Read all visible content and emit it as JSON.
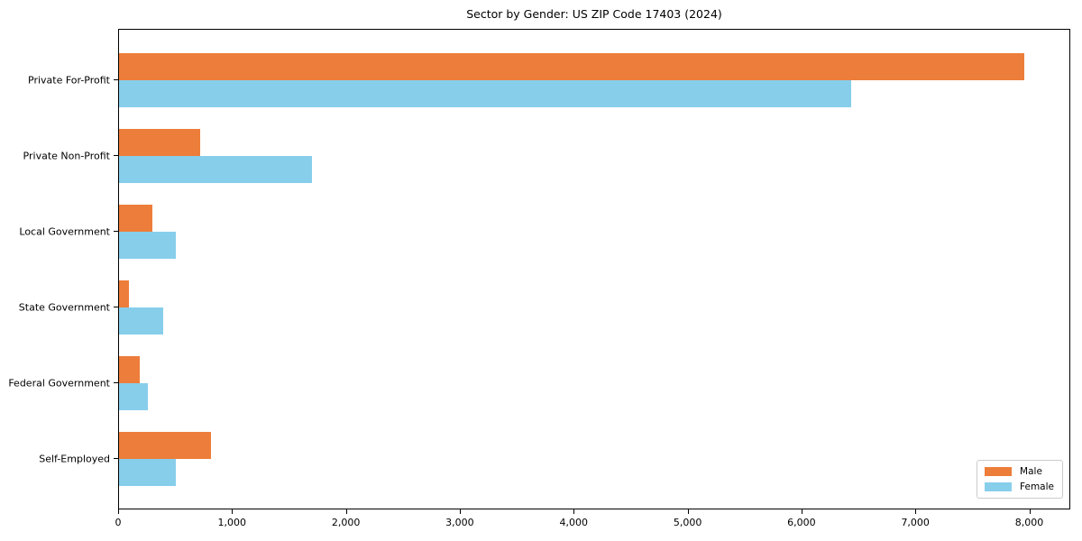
{
  "chart_data": {
    "type": "bar",
    "orientation": "horizontal",
    "title": "Sector by Gender: US ZIP Code 17403 (2024)",
    "categories": [
      "Private For-Profit",
      "Private Non-Profit",
      "Local Government",
      "State Government",
      "Federal Government",
      "Self-Employed"
    ],
    "series": [
      {
        "name": "Male",
        "color": "#ED7D3A",
        "values": [
          7950,
          710,
          290,
          85,
          180,
          805
        ]
      },
      {
        "name": "Female",
        "color": "#87CEEB",
        "values": [
          6430,
          1690,
          495,
          390,
          250,
          495
        ]
      }
    ],
    "xlabel": "",
    "ylabel": "",
    "xlim": [
      0,
      8360
    ],
    "xticks": [
      0,
      1000,
      2000,
      3000,
      4000,
      5000,
      6000,
      7000,
      8000
    ],
    "xtick_labels": [
      "0",
      "1,000",
      "2,000",
      "3,000",
      "4,000",
      "5,000",
      "6,000",
      "7,000",
      "8,000"
    ],
    "grid": false,
    "legend": {
      "position": "lower right",
      "entries": [
        "Male",
        "Female"
      ]
    },
    "colors": {
      "spine": "#000000",
      "background": "#ffffff",
      "legend_border": "#cccccc"
    }
  }
}
